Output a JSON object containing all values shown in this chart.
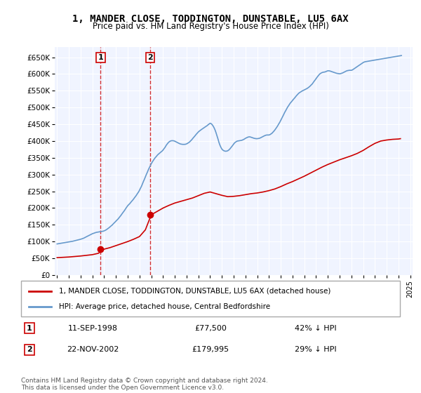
{
  "title": "1, MANDER CLOSE, TODDINGTON, DUNSTABLE, LU5 6AX",
  "subtitle": "Price paid vs. HM Land Registry's House Price Index (HPI)",
  "xlabel": "",
  "ylabel": "",
  "ylim": [
    0,
    680000
  ],
  "yticks": [
    0,
    50000,
    100000,
    150000,
    200000,
    250000,
    300000,
    350000,
    400000,
    450000,
    500000,
    550000,
    600000,
    650000
  ],
  "ytick_labels": [
    "£0",
    "£50K",
    "£100K",
    "£150K",
    "£200K",
    "£250K",
    "£300K",
    "£350K",
    "£400K",
    "£450K",
    "£500K",
    "£550K",
    "£600K",
    "£650K"
  ],
  "background_color": "#f0f4ff",
  "plot_bg": "#f0f4ff",
  "hpi_color": "#6699cc",
  "price_color": "#cc0000",
  "sale1_date": 1998.7,
  "sale1_price": 77500,
  "sale1_label": "1",
  "sale2_date": 2002.9,
  "sale2_price": 179995,
  "sale2_label": "2",
  "legend_line1": "1, MANDER CLOSE, TODDINGTON, DUNSTABLE, LU5 6AX (detached house)",
  "legend_line2": "HPI: Average price, detached house, Central Bedfordshire",
  "table_row1_num": "1",
  "table_row1_date": "11-SEP-1998",
  "table_row1_price": "£77,500",
  "table_row1_hpi": "42% ↓ HPI",
  "table_row2_num": "2",
  "table_row2_date": "22-NOV-2002",
  "table_row2_price": "£179,995",
  "table_row2_hpi": "29% ↓ HPI",
  "footnote": "Contains HM Land Registry data © Crown copyright and database right 2024.\nThis data is licensed under the Open Government Licence v3.0.",
  "hpi_x": [
    1995.0,
    1995.08,
    1995.17,
    1995.25,
    1995.33,
    1995.42,
    1995.5,
    1995.58,
    1995.67,
    1995.75,
    1995.83,
    1995.92,
    1996.0,
    1996.08,
    1996.17,
    1996.25,
    1996.33,
    1996.42,
    1996.5,
    1996.58,
    1996.67,
    1996.75,
    1996.83,
    1996.92,
    1997.0,
    1997.08,
    1997.17,
    1997.25,
    1997.33,
    1997.42,
    1997.5,
    1997.58,
    1997.67,
    1997.75,
    1997.83,
    1997.92,
    1998.0,
    1998.08,
    1998.17,
    1998.25,
    1998.33,
    1998.42,
    1998.5,
    1998.58,
    1998.67,
    1998.75,
    1998.83,
    1998.92,
    1999.0,
    1999.08,
    1999.17,
    1999.25,
    1999.33,
    1999.42,
    1999.5,
    1999.58,
    1999.67,
    1999.75,
    1999.83,
    1999.92,
    2000.0,
    2000.08,
    2000.17,
    2000.25,
    2000.33,
    2000.42,
    2000.5,
    2000.58,
    2000.67,
    2000.75,
    2000.83,
    2000.92,
    2001.0,
    2001.08,
    2001.17,
    2001.25,
    2001.33,
    2001.42,
    2001.5,
    2001.58,
    2001.67,
    2001.75,
    2001.83,
    2001.92,
    2002.0,
    2002.08,
    2002.17,
    2002.25,
    2002.33,
    2002.42,
    2002.5,
    2002.58,
    2002.67,
    2002.75,
    2002.83,
    2002.92,
    2003.0,
    2003.08,
    2003.17,
    2003.25,
    2003.33,
    2003.42,
    2003.5,
    2003.58,
    2003.67,
    2003.75,
    2003.83,
    2003.92,
    2004.0,
    2004.08,
    2004.17,
    2004.25,
    2004.33,
    2004.42,
    2004.5,
    2004.58,
    2004.67,
    2004.75,
    2004.83,
    2004.92,
    2005.0,
    2005.08,
    2005.17,
    2005.25,
    2005.33,
    2005.42,
    2005.5,
    2005.58,
    2005.67,
    2005.75,
    2005.83,
    2005.92,
    2006.0,
    2006.08,
    2006.17,
    2006.25,
    2006.33,
    2006.42,
    2006.5,
    2006.58,
    2006.67,
    2006.75,
    2006.83,
    2006.92,
    2007.0,
    2007.08,
    2007.17,
    2007.25,
    2007.33,
    2007.42,
    2007.5,
    2007.58,
    2007.67,
    2007.75,
    2007.83,
    2007.92,
    2008.0,
    2008.08,
    2008.17,
    2008.25,
    2008.33,
    2008.42,
    2008.5,
    2008.58,
    2008.67,
    2008.75,
    2008.83,
    2008.92,
    2009.0,
    2009.08,
    2009.17,
    2009.25,
    2009.33,
    2009.42,
    2009.5,
    2009.58,
    2009.67,
    2009.75,
    2009.83,
    2009.92,
    2010.0,
    2010.08,
    2010.17,
    2010.25,
    2010.33,
    2010.42,
    2010.5,
    2010.58,
    2010.67,
    2010.75,
    2010.83,
    2010.92,
    2011.0,
    2011.08,
    2011.17,
    2011.25,
    2011.33,
    2011.42,
    2011.5,
    2011.58,
    2011.67,
    2011.75,
    2011.83,
    2011.92,
    2012.0,
    2012.08,
    2012.17,
    2012.25,
    2012.33,
    2012.42,
    2012.5,
    2012.58,
    2012.67,
    2012.75,
    2012.83,
    2012.92,
    2013.0,
    2013.08,
    2013.17,
    2013.25,
    2013.33,
    2013.42,
    2013.5,
    2013.58,
    2013.67,
    2013.75,
    2013.83,
    2013.92,
    2014.0,
    2014.08,
    2014.17,
    2014.25,
    2014.33,
    2014.42,
    2014.5,
    2014.58,
    2014.67,
    2014.75,
    2014.83,
    2014.92,
    2015.0,
    2015.08,
    2015.17,
    2015.25,
    2015.33,
    2015.42,
    2015.5,
    2015.58,
    2015.67,
    2015.75,
    2015.83,
    2015.92,
    2016.0,
    2016.08,
    2016.17,
    2016.25,
    2016.33,
    2016.42,
    2016.5,
    2016.58,
    2016.67,
    2016.75,
    2016.83,
    2016.92,
    2017.0,
    2017.08,
    2017.17,
    2017.25,
    2017.33,
    2017.42,
    2017.5,
    2017.58,
    2017.67,
    2017.75,
    2017.83,
    2017.92,
    2018.0,
    2018.08,
    2018.17,
    2018.25,
    2018.33,
    2018.42,
    2018.5,
    2018.58,
    2018.67,
    2018.75,
    2018.83,
    2018.92,
    2019.0,
    2019.08,
    2019.17,
    2019.25,
    2019.33,
    2019.42,
    2019.5,
    2019.58,
    2019.67,
    2019.75,
    2019.83,
    2019.92,
    2020.0,
    2020.08,
    2020.17,
    2020.25,
    2020.33,
    2020.42,
    2020.5,
    2020.58,
    2020.67,
    2020.75,
    2020.83,
    2020.92,
    2021.0,
    2021.08,
    2021.17,
    2021.25,
    2021.33,
    2021.42,
    2021.5,
    2021.58,
    2021.67,
    2021.75,
    2021.83,
    2021.92,
    2022.0,
    2022.08,
    2022.17,
    2022.25,
    2022.33,
    2022.42,
    2022.5,
    2022.58,
    2022.67,
    2022.75,
    2022.83,
    2022.92,
    2023.0,
    2023.08,
    2023.17,
    2023.25,
    2023.33,
    2023.42,
    2023.5,
    2023.58,
    2023.67,
    2023.75,
    2023.83,
    2023.92,
    2024.0,
    2024.08,
    2024.17,
    2024.25
  ],
  "hpi_y": [
    93000,
    93500,
    94000,
    94500,
    95000,
    95500,
    96000,
    96500,
    97000,
    97500,
    98000,
    98500,
    99000,
    99500,
    100000,
    100500,
    101000,
    101800,
    102500,
    103200,
    104000,
    104800,
    105500,
    106200,
    107000,
    108000,
    109000,
    110000,
    111500,
    113000,
    114500,
    116000,
    117500,
    119000,
    120500,
    122000,
    123500,
    124500,
    125500,
    126500,
    127500,
    128000,
    128500,
    129000,
    129500,
    130000,
    130500,
    131000,
    132000,
    133500,
    135000,
    137000,
    139000,
    141500,
    144000,
    146500,
    149000,
    152000,
    155000,
    158000,
    161000,
    164000,
    167000,
    170500,
    174000,
    178000,
    182000,
    186000,
    190000,
    194000,
    198500,
    203000,
    207000,
    210000,
    213000,
    216500,
    220000,
    223500,
    227000,
    231000,
    235000,
    239000,
    243500,
    248000,
    253000,
    259000,
    265000,
    272000,
    279000,
    286000,
    293000,
    300000,
    307000,
    314000,
    320000,
    326000,
    332000,
    337000,
    342000,
    346000,
    350000,
    353500,
    357000,
    360000,
    362500,
    365000,
    367500,
    370000,
    373000,
    377000,
    381000,
    386000,
    390000,
    394000,
    397000,
    399000,
    400500,
    401000,
    401000,
    400500,
    399500,
    398000,
    396500,
    395000,
    393500,
    392000,
    391000,
    390500,
    390000,
    390000,
    390000,
    390500,
    391500,
    393000,
    395000,
    397000,
    400000,
    403000,
    406500,
    410000,
    413500,
    417000,
    420500,
    424000,
    427000,
    429500,
    432000,
    434000,
    436000,
    438000,
    440000,
    442000,
    444000,
    446000,
    448500,
    451000,
    453000,
    452000,
    449000,
    445000,
    440000,
    433000,
    425000,
    416000,
    406000,
    396000,
    388000,
    381000,
    376000,
    373000,
    371000,
    370000,
    369500,
    370000,
    371000,
    373000,
    376000,
    379500,
    383000,
    387000,
    391000,
    394500,
    397000,
    399000,
    400000,
    400500,
    401000,
    401500,
    402000,
    403000,
    404500,
    406000,
    408000,
    409500,
    411000,
    412000,
    412500,
    412000,
    411000,
    410000,
    409000,
    408000,
    407500,
    407000,
    407000,
    407500,
    408000,
    409000,
    410500,
    412000,
    413500,
    415000,
    416500,
    417500,
    418000,
    418000,
    418000,
    419000,
    421000,
    423000,
    426000,
    429500,
    433000,
    437000,
    441500,
    446000,
    451000,
    456000,
    461500,
    467000,
    473000,
    479000,
    485000,
    490500,
    496000,
    501000,
    505500,
    510000,
    514000,
    517500,
    521000,
    524500,
    528000,
    531500,
    535000,
    538500,
    541500,
    544000,
    546000,
    548000,
    549500,
    551000,
    552500,
    554000,
    555500,
    557000,
    559000,
    561500,
    564000,
    567000,
    570000,
    574000,
    578000,
    582000,
    586000,
    590000,
    594000,
    597500,
    600500,
    602500,
    604000,
    605000,
    605500,
    606000,
    607000,
    608500,
    609500,
    609500,
    609000,
    608000,
    607000,
    606000,
    605000,
    604000,
    603000,
    602000,
    601500,
    601000,
    600500,
    601000,
    602000,
    603000,
    604500,
    606000,
    607500,
    609000,
    610000,
    610500,
    611000,
    611000,
    611000,
    612000,
    614000,
    616000,
    618000,
    620000,
    622000,
    624000,
    626000,
    628000,
    630000,
    632000,
    634000,
    635500,
    636500,
    637000,
    637500,
    638000,
    638500,
    639000,
    639500,
    640000,
    640500,
    641000,
    641500,
    642000,
    642500,
    643000,
    643500,
    644000,
    644500,
    645000,
    645500,
    646000,
    646500,
    647000,
    647500,
    648000,
    648500,
    649000,
    649500,
    650000,
    650500,
    651000,
    651500,
    652000,
    652500,
    653000,
    653500,
    654000,
    654500,
    655000
  ],
  "price_x": [
    1995.0,
    1995.5,
    1996.0,
    1996.5,
    1997.0,
    1997.5,
    1998.0,
    1998.5,
    1999.0,
    1999.5,
    2000.0,
    2000.5,
    2001.0,
    2001.5,
    2002.0,
    2002.5,
    2003.0,
    2003.5,
    2004.0,
    2004.5,
    2005.0,
    2005.5,
    2006.0,
    2006.5,
    2007.0,
    2007.5,
    2008.0,
    2008.5,
    2009.0,
    2009.5,
    2010.0,
    2010.5,
    2011.0,
    2011.5,
    2012.0,
    2012.5,
    2013.0,
    2013.5,
    2014.0,
    2014.5,
    2015.0,
    2015.5,
    2016.0,
    2016.5,
    2017.0,
    2017.5,
    2018.0,
    2018.5,
    2019.0,
    2019.5,
    2020.0,
    2020.5,
    2021.0,
    2021.5,
    2022.0,
    2022.5,
    2023.0,
    2023.5,
    2024.0,
    2024.17
  ],
  "price_y": [
    52000,
    53000,
    54000,
    55500,
    57000,
    59000,
    61000,
    65000,
    77500,
    82000,
    88000,
    94000,
    100000,
    107000,
    115000,
    135000,
    179995,
    190000,
    200000,
    208000,
    215000,
    220000,
    225000,
    230000,
    237000,
    244000,
    248000,
    243000,
    238000,
    234000,
    235000,
    237000,
    240000,
    243000,
    245000,
    248000,
    252000,
    257000,
    264000,
    272000,
    279000,
    287000,
    295000,
    304000,
    313000,
    322000,
    330000,
    337000,
    344000,
    350000,
    356000,
    363000,
    372000,
    383000,
    393000,
    400000,
    403000,
    405000,
    406000,
    407000
  ]
}
